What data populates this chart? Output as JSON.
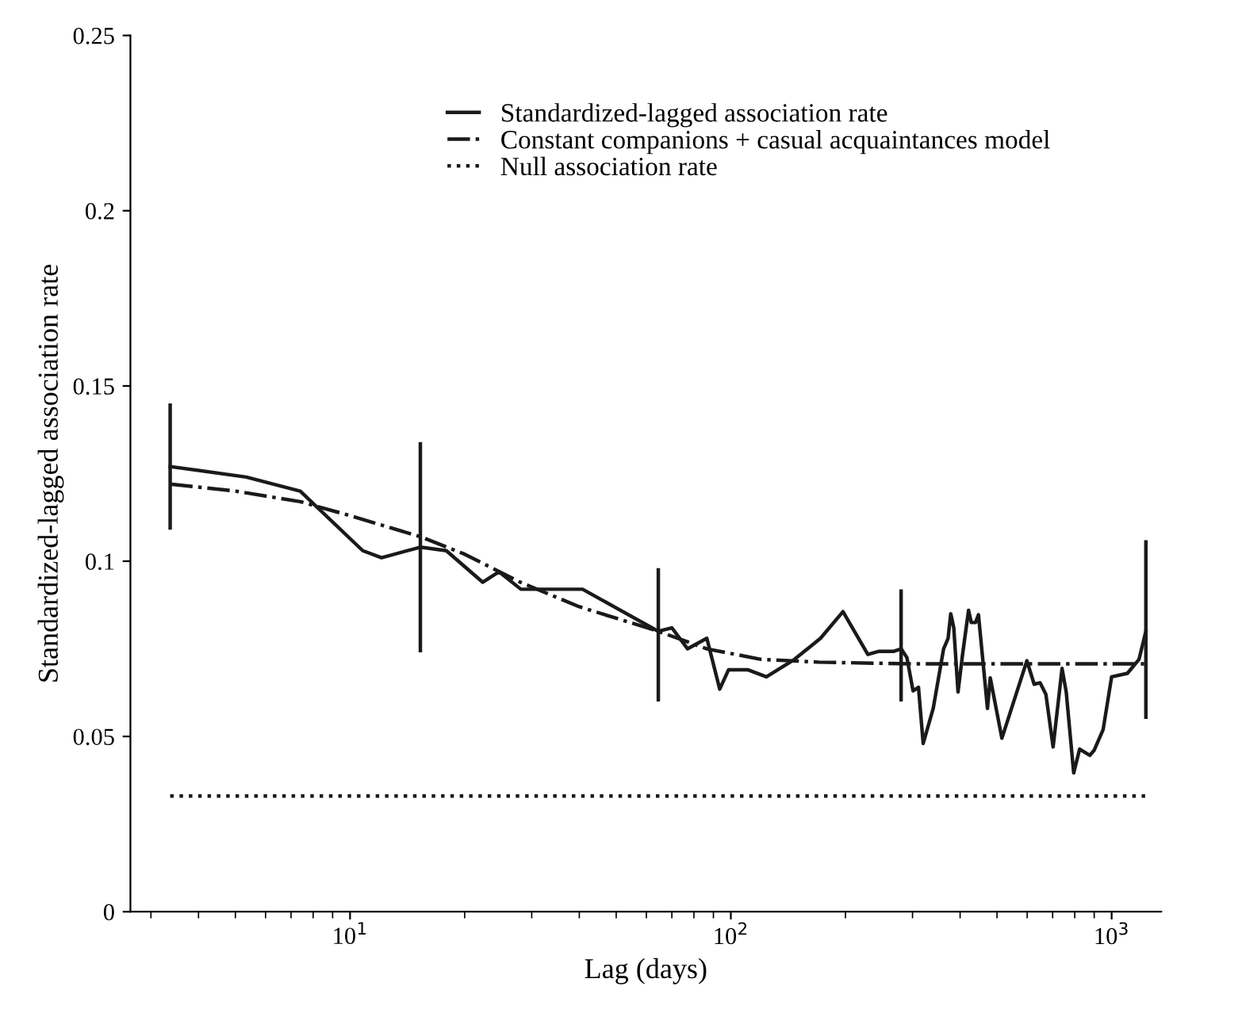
{
  "chart_data": {
    "type": "line",
    "xlabel": "Lag (days)",
    "ylabel": "Standardized-lagged association rate",
    "log": "x",
    "xlim": [
      2.65,
      1350
    ],
    "xticks": [
      {
        "value": 10,
        "label": "10$^{1}$"
      },
      {
        "value": 100,
        "label": "10$^{2}$"
      },
      {
        "value": 1000,
        "label": "10$^{3}$"
      }
    ],
    "ylim": [
      0,
      0.25
    ],
    "yticks": [
      0,
      0.05,
      0.1,
      0.15,
      0.2,
      0.25
    ],
    "grid": false,
    "legend": "top",
    "marker": "none",
    "series": [
      {
        "name": "Standardized-lagged association rate",
        "color": "#1a1a1a",
        "line_style": "solid",
        "x": [
          3.37,
          5.34,
          7.4,
          10.8,
          12.1,
          15.3,
          17.9,
          22.3,
          24.6,
          28.1,
          40.8,
          64.5,
          70,
          77,
          86.5,
          93.5,
          98.6,
          111,
          124,
          147,
          172,
          197,
          229,
          245,
          268,
          280,
          290,
          301,
          311,
          320,
          340,
          362,
          372,
          378,
          385,
          395,
          406,
          421,
          428,
          439,
          447,
          472,
          480,
          515,
          599,
          626,
          649,
          672,
          702,
          741,
          760,
          795,
          824,
          876,
          899,
          950,
          1000,
          1100,
          1180,
          1230
        ],
        "values": [
          0.127,
          0.124,
          0.12,
          0.103,
          0.101,
          0.104,
          0.103,
          0.094,
          0.097,
          0.092,
          0.092,
          0.08,
          0.081,
          0.075,
          0.078,
          0.0635,
          0.069,
          0.069,
          0.067,
          0.072,
          0.078,
          0.0856,
          0.0734,
          0.0743,
          0.0743,
          0.075,
          0.0725,
          0.063,
          0.064,
          0.048,
          0.058,
          0.075,
          0.078,
          0.085,
          0.081,
          0.0627,
          0.0734,
          0.086,
          0.0825,
          0.0825,
          0.0847,
          0.058,
          0.0667,
          0.0495,
          0.0716,
          0.0649,
          0.0653,
          0.062,
          0.047,
          0.0694,
          0.0626,
          0.0396,
          0.0464,
          0.0446,
          0.046,
          0.052,
          0.067,
          0.068,
          0.072,
          0.08
        ],
        "errors": [
          [
            0.109,
            0.145
          ],
          null,
          null,
          null,
          null,
          [
            0.074,
            0.134
          ],
          null,
          null,
          null,
          null,
          null,
          [
            0.06,
            0.098
          ],
          null,
          null,
          null,
          null,
          null,
          null,
          null,
          null,
          null,
          null,
          null,
          null,
          null,
          [
            0.06,
            0.092
          ],
          null,
          null,
          null,
          null,
          null,
          null,
          null,
          null,
          null,
          null,
          null,
          null,
          null,
          null,
          null,
          null,
          null,
          null,
          null,
          null,
          null,
          null,
          null,
          null,
          null,
          null,
          null,
          null,
          null,
          null,
          null,
          null,
          null,
          [
            0.055,
            0.106
          ]
        ]
      },
      {
        "name": "Constant companions + casual acquaintances model",
        "color": "#1a1a1a",
        "line_style": "dashdot",
        "x": [
          3.37,
          5,
          7.4,
          10,
          15.3,
          20,
          28,
          40,
          64.5,
          86.5,
          120,
          170,
          300,
          1230
        ],
        "values": [
          0.122,
          0.12,
          0.117,
          0.113,
          0.107,
          0.102,
          0.094,
          0.087,
          0.08,
          0.075,
          0.072,
          0.0712,
          0.0707,
          0.0707
        ]
      },
      {
        "name": "Null association rate",
        "color": "#1a1a1a",
        "line_style": "dotted",
        "x": [
          3.37,
          1230
        ],
        "values": [
          0.033,
          0.033
        ]
      }
    ]
  }
}
